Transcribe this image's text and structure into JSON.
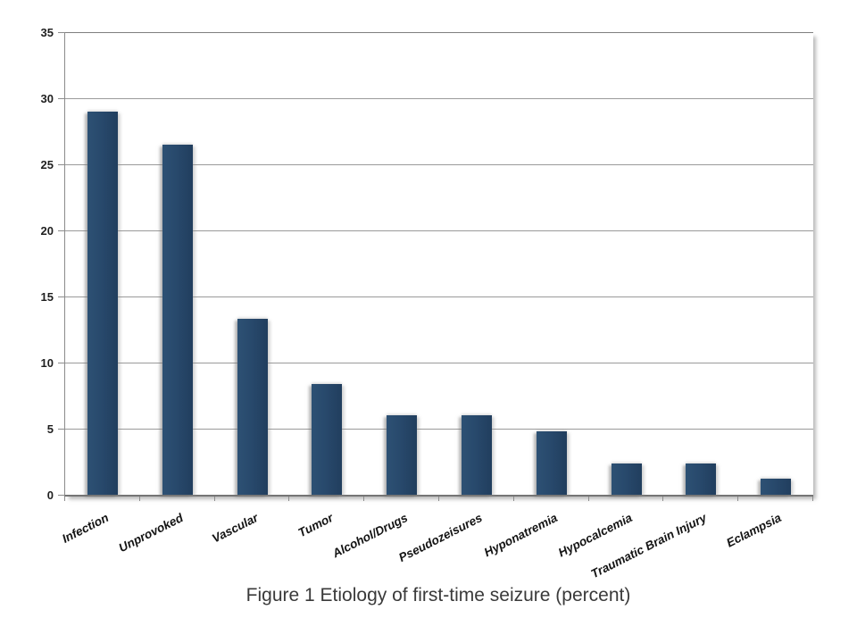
{
  "chart_data": {
    "type": "bar",
    "title": "Figure 1 Etiology of first-time seizure (percent)",
    "categories": [
      "Infection",
      "Unprovoked",
      "Vascular",
      "Tumor",
      "Alcohol/Drugs",
      "Pseudozeisures",
      "Hyponatremia",
      "Hypocalcemia",
      "Traumatic Brain Injury",
      "Eclampsia"
    ],
    "values": [
      29,
      26.5,
      13.3,
      8.4,
      6,
      6,
      4.8,
      2.4,
      2.4,
      1.2
    ],
    "xlabel": "",
    "ylabel": "",
    "ylim": [
      0,
      35
    ],
    "yticks": [
      0,
      5,
      10,
      15,
      20,
      25,
      30,
      35
    ],
    "grid": true,
    "legend": false,
    "colors": {
      "bar": "#28496C",
      "bar_edge_dark": "#213E5E",
      "bar_edge_light": "#2D5174",
      "gridline": "#9A9A9A",
      "axis": "#7F7F7F",
      "tick_label": "#1F1F1F",
      "caption": "#3A3A3A",
      "background": "#FFFFFF"
    }
  }
}
